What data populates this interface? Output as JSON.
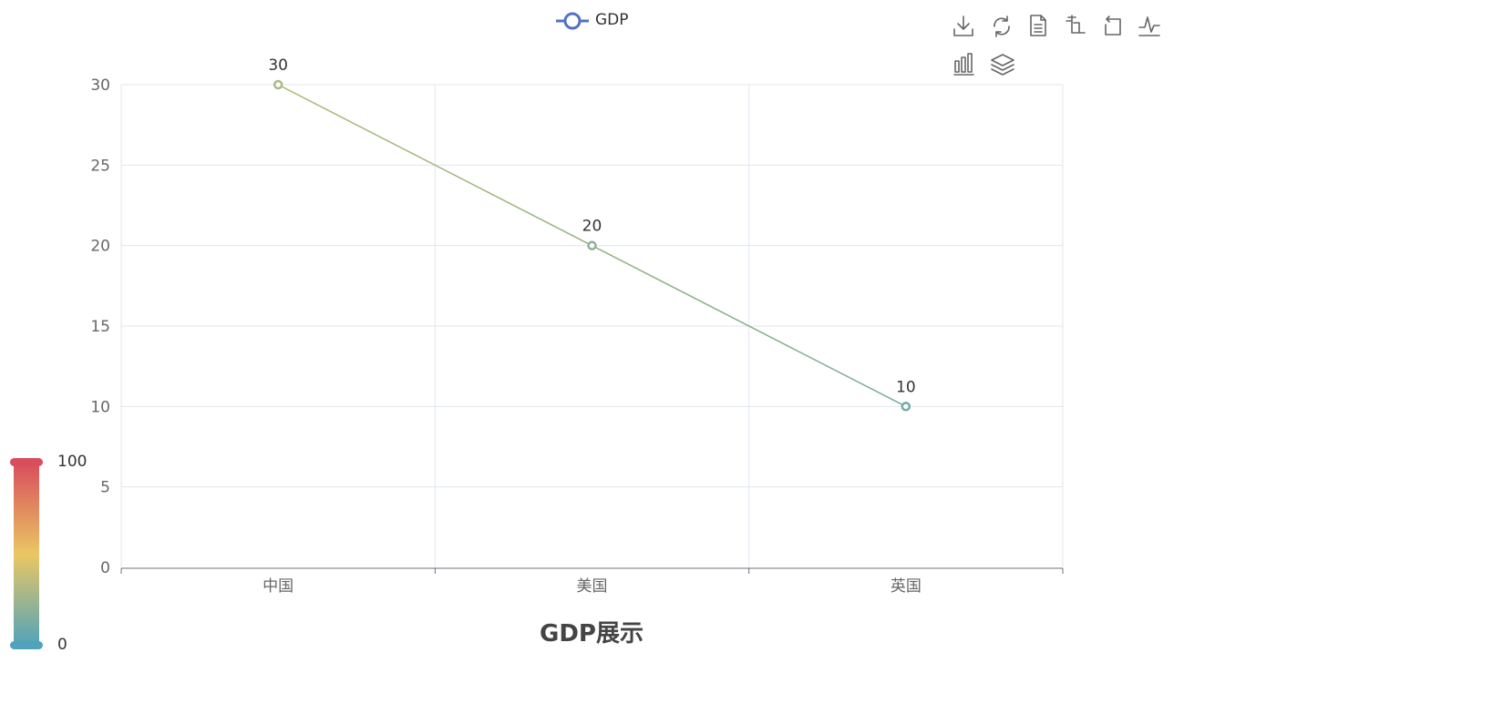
{
  "chart_data": {
    "type": "line",
    "categories": [
      "中国",
      "美国",
      "英国"
    ],
    "series": [
      {
        "name": "GDP",
        "values": [
          30,
          20,
          10
        ]
      }
    ],
    "title": "GDP展示",
    "xlabel": "",
    "ylabel": "",
    "ylim": [
      0,
      30
    ],
    "yticks": [
      0,
      5,
      10,
      15,
      20,
      25,
      30
    ],
    "grid": true,
    "legend": "top-center",
    "data_labels": true,
    "visual_map": {
      "min": 0,
      "max": 100,
      "min_label": "0",
      "max_label": "100",
      "colors": [
        "#50a3ba",
        "#eac763",
        "#d94e5d"
      ]
    },
    "colors": {
      "legend_line": "#5470c6",
      "grid": "#e0e6f1",
      "axis": "#6e7079"
    }
  },
  "toolbox": {
    "icons": [
      "download-icon",
      "refresh-icon",
      "data-view-icon",
      "zoom-icon",
      "zoom-reset-icon",
      "line-chart-icon",
      "bar-chart-icon",
      "stack-icon"
    ]
  }
}
